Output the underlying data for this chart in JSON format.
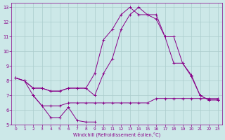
{
  "background_color": "#cce8e8",
  "line_color": "#880088",
  "grid_color": "#aacccc",
  "xlabel": "Windchill (Refroidissement éolien,°C)",
  "curve1_x": [
    0,
    1,
    2,
    3,
    4,
    5,
    6,
    7,
    8,
    9,
    10,
    11,
    12,
    13,
    14,
    15,
    16,
    17,
    18,
    19,
    20,
    21,
    22,
    23
  ],
  "curve1_y": [
    8.2,
    8.0,
    7.5,
    7.5,
    7.3,
    7.3,
    7.5,
    7.5,
    7.5,
    8.5,
    10.8,
    11.5,
    12.5,
    13.0,
    12.5,
    12.5,
    12.5,
    11.0,
    9.2,
    9.2,
    8.3,
    7.0,
    6.7,
    6.7
  ],
  "curve2_x": [
    0,
    1,
    2,
    3,
    4,
    5,
    6,
    7,
    8,
    9,
    10,
    11,
    12,
    13,
    14,
    15,
    16,
    17,
    18,
    19,
    20,
    21,
    22,
    23
  ],
  "curve2_y": [
    8.2,
    8.0,
    7.5,
    7.5,
    7.3,
    7.3,
    7.5,
    7.5,
    7.5,
    7.0,
    8.5,
    9.5,
    11.5,
    12.5,
    13.0,
    12.5,
    12.2,
    11.0,
    11.0,
    9.2,
    8.4,
    7.0,
    6.7,
    6.7
  ],
  "curve3_x": [
    0,
    1,
    2,
    3,
    4,
    5,
    6,
    7,
    8,
    9,
    10,
    11,
    12,
    13,
    14,
    15,
    16,
    17,
    18,
    19,
    20,
    21,
    22,
    23
  ],
  "curve3_y": [
    8.2,
    8.0,
    7.0,
    6.3,
    6.3,
    6.3,
    6.5,
    6.5,
    6.5,
    6.5,
    6.5,
    6.5,
    6.5,
    6.5,
    6.5,
    6.5,
    6.8,
    6.8,
    6.8,
    6.8,
    6.8,
    6.8,
    6.8,
    6.8
  ],
  "curve4_x": [
    2,
    3,
    4,
    5,
    6,
    7,
    8,
    9
  ],
  "curve4_y": [
    7.0,
    6.3,
    5.5,
    5.5,
    6.2,
    5.3,
    5.2,
    5.2
  ],
  "xlim": [
    -0.5,
    23.5
  ],
  "ylim": [
    5.0,
    13.3
  ],
  "xtick_labels": [
    "0",
    "1",
    "2",
    "3",
    "4",
    "5",
    "6",
    "7",
    "8",
    "9",
    "10",
    "11",
    "12",
    "13",
    "14",
    "15",
    "16",
    "17",
    "18",
    "19",
    "20",
    "21",
    "22",
    "23"
  ],
  "ytick_labels": [
    "5",
    "6",
    "7",
    "8",
    "9",
    "10",
    "11",
    "12",
    "13"
  ]
}
